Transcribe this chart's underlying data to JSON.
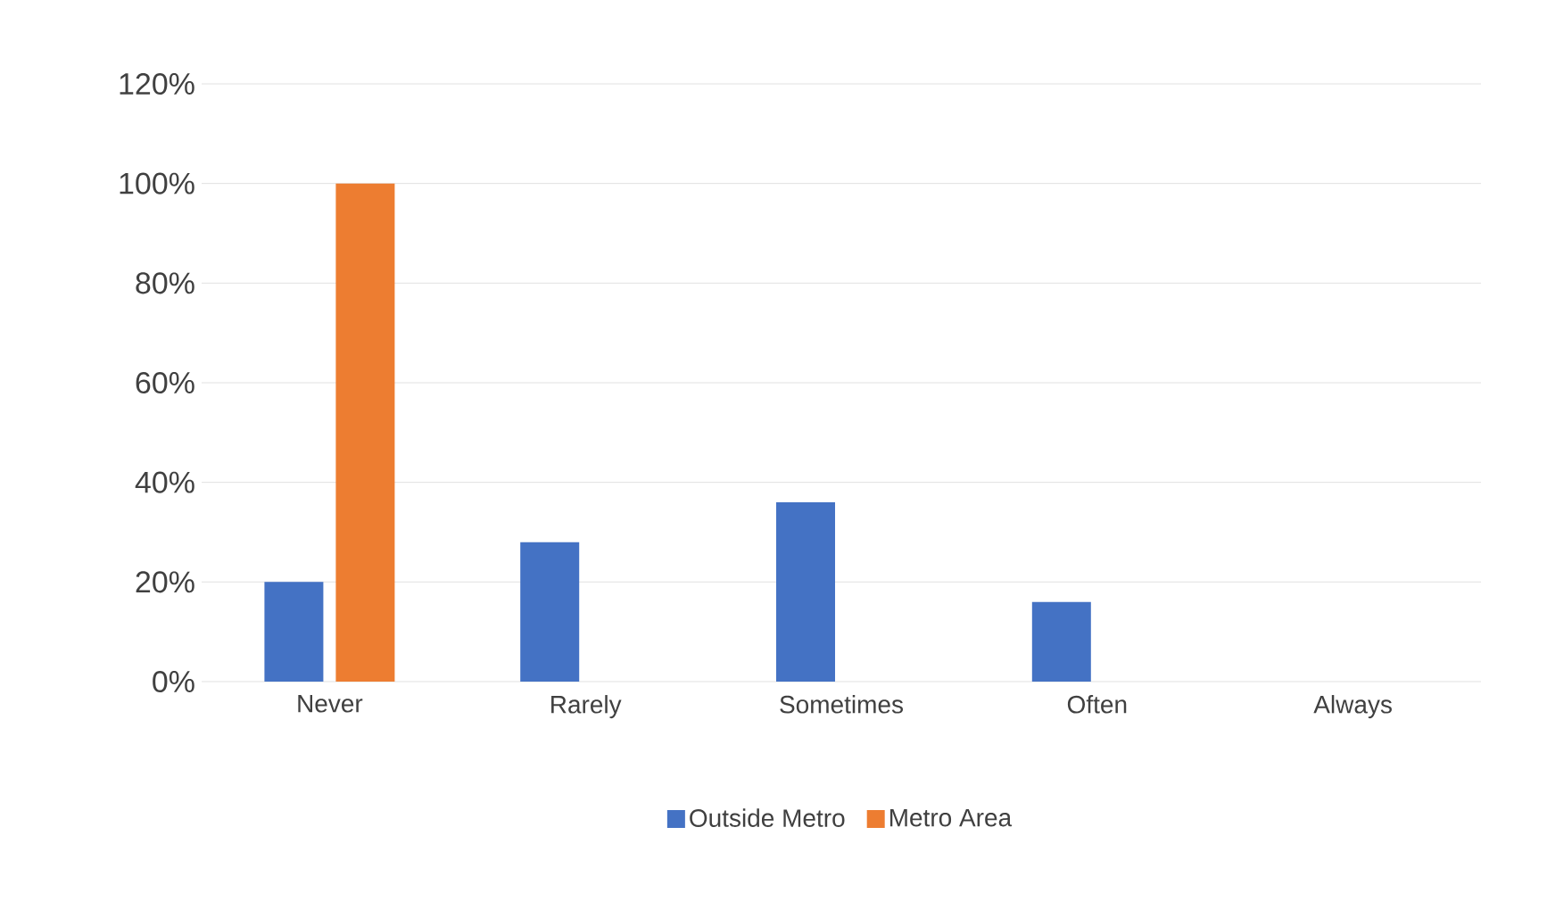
{
  "chart_data": {
    "type": "bar",
    "categories": [
      "Never",
      "Rarely",
      "Sometimes",
      "Often",
      "Always"
    ],
    "series": [
      {
        "name": "Outside Metro",
        "color": "#4472c4",
        "values": [
          20,
          28,
          36,
          16,
          0
        ]
      },
      {
        "name": "Metro Area",
        "color": "#ed7d31",
        "values": [
          100,
          0,
          0,
          0,
          0
        ]
      }
    ],
    "ylim": [
      0,
      120
    ],
    "yticks": [
      {
        "value": 0,
        "label": "0%"
      },
      {
        "value": 20,
        "label": "20%"
      },
      {
        "value": 40,
        "label": "40%"
      },
      {
        "value": 60,
        "label": "60%"
      },
      {
        "value": 80,
        "label": "80%"
      },
      {
        "value": 100,
        "label": "100%"
      },
      {
        "value": 120,
        "label": "120%"
      }
    ],
    "grid": "y",
    "legend": "bottom"
  }
}
